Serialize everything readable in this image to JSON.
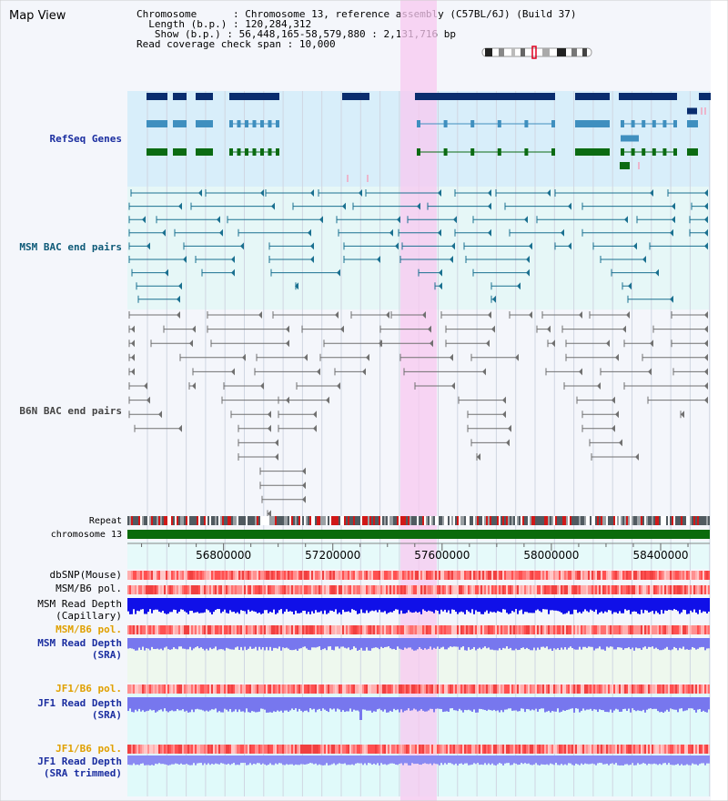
{
  "page": {
    "title": "Map View"
  },
  "info": {
    "chromosome_key": "Chromosome",
    "chromosome": "Chromosome 13, reference assembly (C57BL/6J) (Build 37)",
    "length_key": "Length (b.p.)",
    "length": "120,284,312",
    "show_key": "Show (b.p.)",
    "show": "56,448,165-58,579,880 : 2,131,716 bp",
    "coverage_key": "Read coverage check span",
    "coverage": "10,000"
  },
  "tracks": {
    "refseq": "RefSeq Genes",
    "msm_bac": "MSM BAC end pairs",
    "b6n_bac": "B6N BAC end pairs",
    "repeat": "Repeat",
    "chromosome": "chromosome 13",
    "dbsnp": "dbSNP(Mouse)",
    "msm_b6_pol": "MSM/B6 pol.",
    "msm_depth_1": "MSM Read Depth",
    "msm_depth_2": "(Capillary)",
    "msm_b6_pol_sra": "MSM/B6 pol.",
    "msm_sra_1": "MSM Read Depth",
    "msm_sra_2": "(SRA)",
    "jf1_pol": "JF1/B6 pol.",
    "jf1_sra_1": "JF1 Read Depth",
    "jf1_sra_2": "(SRA)",
    "jf1_pol_trim": "JF1/B6 pol.",
    "jf1_trim_1": "JF1 Read Depth",
    "jf1_trim_2": "(SRA trimmed)"
  },
  "axis": {
    "ticks": [
      "56800000",
      "57200000",
      "57600000",
      "58000000",
      "58400000"
    ],
    "tick_values": [
      56800000,
      57200000,
      57600000,
      58000000,
      58400000
    ],
    "range": [
      56448165,
      58579880
    ]
  },
  "colors": {
    "refseq_dark": "#0a2d6e",
    "refseq_mid": "#3f8fbf",
    "refseq_green": "#0b6b12",
    "msm_bac": "#1a7090",
    "b6n_bac": "#707070",
    "highlight": "#f8c8f0",
    "chrom_bar": "#0b6b0b",
    "depth_capillary": "#1010e8",
    "depth_sra": "#7777ee"
  }
}
